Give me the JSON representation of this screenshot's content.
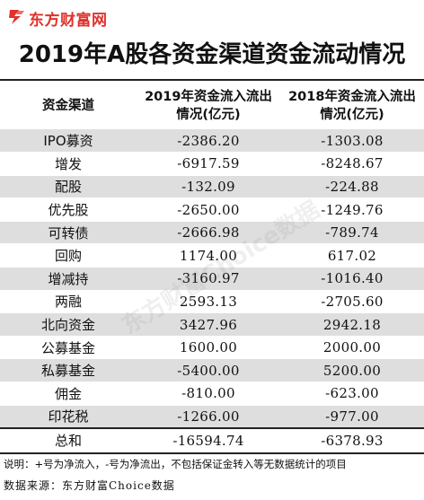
{
  "brand": {
    "name": "东方财富网",
    "color": "#e0312b"
  },
  "title": "2019年A股各资金渠道资金流动情况",
  "headers": [
    "资金渠道",
    "2019年资金流入流出情况(亿元)",
    "2018年资金流入流出情况(亿元)"
  ],
  "rows": [
    {
      "channel": "IPO募资",
      "y2019": "-2386.20",
      "y2018": "-1303.08"
    },
    {
      "channel": "增发",
      "y2019": "-6917.59",
      "y2018": "-8248.67"
    },
    {
      "channel": "配股",
      "y2019": "-132.09",
      "y2018": "-224.88"
    },
    {
      "channel": "优先股",
      "y2019": "-2650.00",
      "y2018": "-1249.76"
    },
    {
      "channel": "可转债",
      "y2019": "-2666.98",
      "y2018": "-789.74"
    },
    {
      "channel": "回购",
      "y2019": "1174.00",
      "y2018": "617.02"
    },
    {
      "channel": "增减持",
      "y2019": "-3160.97",
      "y2018": "-1016.40"
    },
    {
      "channel": "两融",
      "y2019": "2593.13",
      "y2018": "-2705.60"
    },
    {
      "channel": "北向资金",
      "y2019": "3427.96",
      "y2018": "2942.18"
    },
    {
      "channel": "公募基金",
      "y2019": "1600.00",
      "y2018": "2000.00"
    },
    {
      "channel": "私募基金",
      "y2019": "-5400.00",
      "y2018": "5200.00"
    },
    {
      "channel": "佣金",
      "y2019": "-810.00",
      "y2018": "-623.00"
    },
    {
      "channel": "印花税",
      "y2019": "-1266.00",
      "y2018": "-977.00"
    }
  ],
  "total": {
    "channel": "总和",
    "y2019": "-16594.74",
    "y2018": "-6378.93"
  },
  "watermark": "东方财富Choice数据",
  "note": "说明：+号为净流入，-号为净流出，不包括保证金转入等无数据统计的项目",
  "source": "数据来源：东方财富Choice数据",
  "colors": {
    "shaded_row": "#dedede",
    "accent": "#e0312b"
  }
}
